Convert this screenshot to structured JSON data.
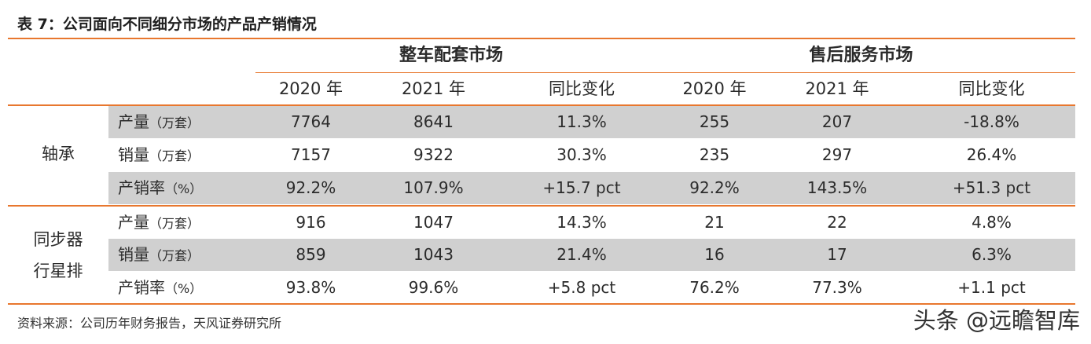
{
  "title": "表 7：公司面向不同细分市场的产品产销情况",
  "groups": {
    "oem": "整车配套市场",
    "aftermarket": "售后服务市场"
  },
  "subheaders": [
    "2020 年",
    "2021 年",
    "同比变化",
    "2020 年",
    "2021 年",
    "同比变化"
  ],
  "sections": [
    {
      "name_lines": [
        "轴承"
      ],
      "rows": [
        {
          "label": "产量",
          "unit": "（万套）",
          "values": [
            "7764",
            "8641",
            "11.3%",
            "255",
            "207",
            "-18.8%"
          ]
        },
        {
          "label": "销量",
          "unit": "（万套）",
          "values": [
            "7157",
            "9322",
            "30.3%",
            "235",
            "297",
            "26.4%"
          ]
        },
        {
          "label": "产销率",
          "unit": "（%）",
          "values": [
            "92.2%",
            "107.9%",
            "+15.7 pct",
            "92.2%",
            "143.5%",
            "+51.3 pct"
          ]
        }
      ]
    },
    {
      "name_lines": [
        "同步器",
        "行星排"
      ],
      "rows": [
        {
          "label": "产量",
          "unit": "（万套）",
          "values": [
            "916",
            "1047",
            "14.3%",
            "21",
            "22",
            "4.8%"
          ]
        },
        {
          "label": "销量",
          "unit": "（万套）",
          "values": [
            "859",
            "1043",
            "21.4%",
            "16",
            "17",
            "6.3%"
          ]
        },
        {
          "label": "产销率",
          "unit": "（%）",
          "values": [
            "93.8%",
            "99.6%",
            "+5.8 pct",
            "76.2%",
            "77.3%",
            "+1.1 pct"
          ]
        }
      ]
    }
  ],
  "source": "资料来源：公司历年财务报告，天风证券研究所",
  "watermark": "头条 @远瞻智库",
  "colors": {
    "accent": "#e8772e",
    "shade": "#d0d0d0"
  }
}
